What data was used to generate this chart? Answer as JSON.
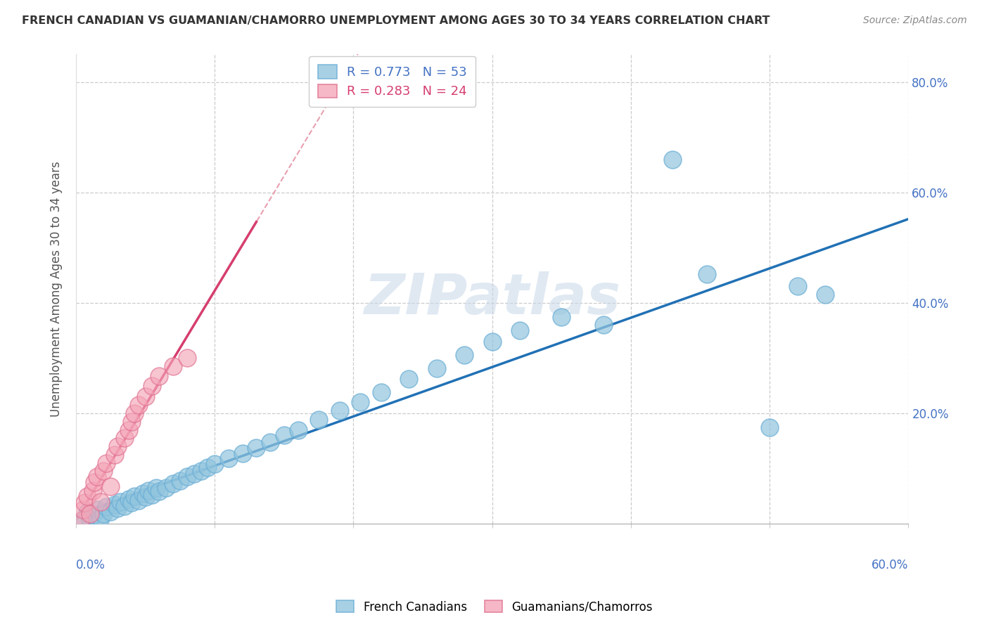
{
  "title": "FRENCH CANADIAN VS GUAMANIAN/CHAMORRO UNEMPLOYMENT AMONG AGES 30 TO 34 YEARS CORRELATION CHART",
  "source": "Source: ZipAtlas.com",
  "ylabel": "Unemployment Among Ages 30 to 34 years",
  "legend_blue_r": "R = 0.773",
  "legend_blue_n": "N = 53",
  "legend_pink_r": "R = 0.283",
  "legend_pink_n": "N = 24",
  "blue_color": "#92c5de",
  "pink_color": "#f4a6b8",
  "blue_scatter_edge": "#6baed6",
  "pink_scatter_edge": "#e07090",
  "blue_line_color": "#2171b5",
  "pink_line_color": "#d63e6e",
  "pink_dash_color": "#e8a0b0",
  "watermark": "ZIPatlas",
  "xlim": [
    0.0,
    0.6
  ],
  "ylim": [
    0.0,
    0.85
  ],
  "blue_points_x": [
    0.005,
    0.008,
    0.01,
    0.012,
    0.015,
    0.018,
    0.02,
    0.022,
    0.025,
    0.028,
    0.03,
    0.032,
    0.035,
    0.038,
    0.04,
    0.042,
    0.045,
    0.048,
    0.05,
    0.052,
    0.055,
    0.058,
    0.06,
    0.065,
    0.07,
    0.075,
    0.08,
    0.085,
    0.09,
    0.095,
    0.1,
    0.11,
    0.12,
    0.13,
    0.14,
    0.15,
    0.16,
    0.175,
    0.19,
    0.205,
    0.22,
    0.24,
    0.26,
    0.28,
    0.3,
    0.32,
    0.35,
    0.38,
    0.43,
    0.455,
    0.5,
    0.52,
    0.54
  ],
  "blue_points_y": [
    0.005,
    0.02,
    0.008,
    0.015,
    0.025,
    0.01,
    0.018,
    0.03,
    0.022,
    0.035,
    0.028,
    0.04,
    0.032,
    0.045,
    0.038,
    0.05,
    0.042,
    0.055,
    0.048,
    0.06,
    0.052,
    0.065,
    0.058,
    0.065,
    0.072,
    0.078,
    0.085,
    0.09,
    0.095,
    0.102,
    0.108,
    0.118,
    0.128,
    0.138,
    0.148,
    0.16,
    0.17,
    0.188,
    0.205,
    0.22,
    0.238,
    0.262,
    0.282,
    0.305,
    0.33,
    0.35,
    0.375,
    0.36,
    0.66,
    0.452,
    0.175,
    0.43,
    0.415
  ],
  "pink_points_x": [
    0.003,
    0.005,
    0.006,
    0.008,
    0.01,
    0.012,
    0.013,
    0.015,
    0.018,
    0.02,
    0.022,
    0.025,
    0.028,
    0.03,
    0.035,
    0.038,
    0.04,
    0.042,
    0.045,
    0.05,
    0.055,
    0.06,
    0.07,
    0.08
  ],
  "pink_points_y": [
    0.005,
    0.025,
    0.038,
    0.05,
    0.018,
    0.06,
    0.075,
    0.085,
    0.04,
    0.095,
    0.11,
    0.068,
    0.125,
    0.14,
    0.155,
    0.17,
    0.185,
    0.2,
    0.215,
    0.23,
    0.25,
    0.268,
    0.285,
    0.3
  ]
}
